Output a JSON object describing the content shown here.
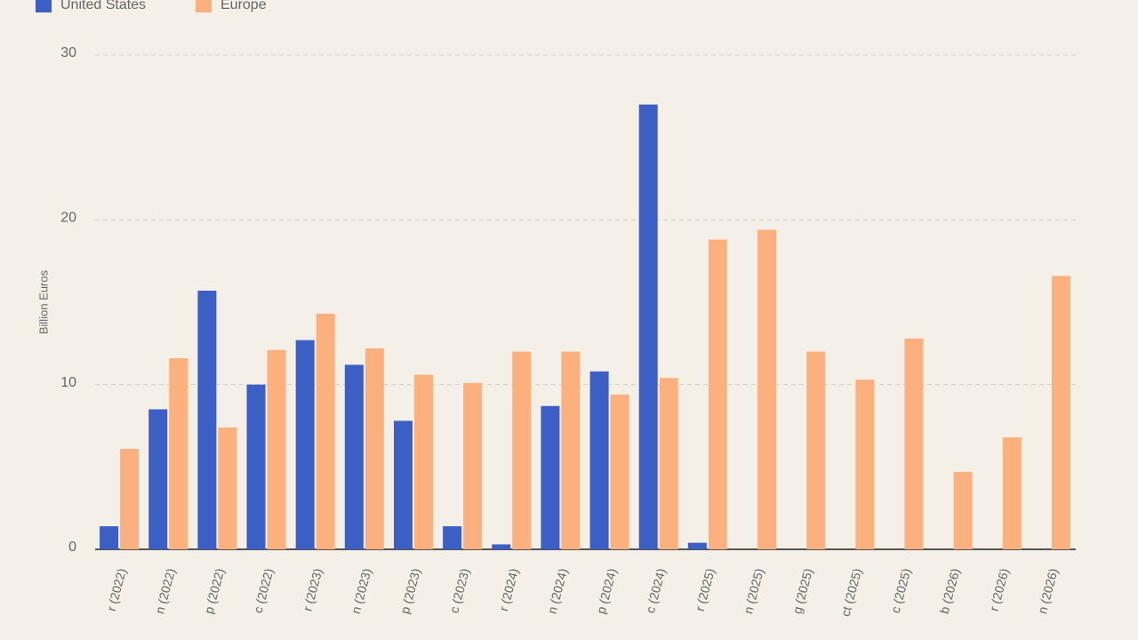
{
  "chart_data": {
    "type": "bar",
    "y_label": "Billion Euros",
    "categories": [
      "r (2022)",
      "n (2022)",
      "p (2022)",
      "c (2022)",
      "r (2023)",
      "n (2023)",
      "p (2023)",
      "c (2023)",
      "r (2024)",
      "n (2024)",
      "p (2024)",
      "c (2024)",
      "r (2025)",
      "n (2025)",
      "g (2025)",
      "ct (2025)",
      "c (2025)",
      "b (2026)",
      "r (2026)",
      "n (2026)"
    ],
    "series": [
      {
        "name": "United States",
        "color": "#3b5fc4",
        "values": [
          1.4,
          8.5,
          15.7,
          10,
          12.7,
          11.2,
          7.8,
          1.4,
          0.3,
          8.7,
          10.8,
          27,
          0.4,
          null,
          null,
          null,
          null,
          null,
          null,
          null
        ]
      },
      {
        "name": "Europe",
        "color": "#fbb07d",
        "values": [
          6.1,
          11.6,
          7.4,
          12.1,
          14.3,
          12.2,
          10.6,
          10.1,
          12,
          12,
          9.4,
          10.4,
          18.8,
          19.4,
          12,
          10.3,
          12.8,
          4.7,
          6.8,
          16.6
        ]
      }
    ],
    "ylim": [
      0,
      30
    ],
    "yticks": [
      0,
      10,
      20,
      30
    ],
    "grid": true
  }
}
